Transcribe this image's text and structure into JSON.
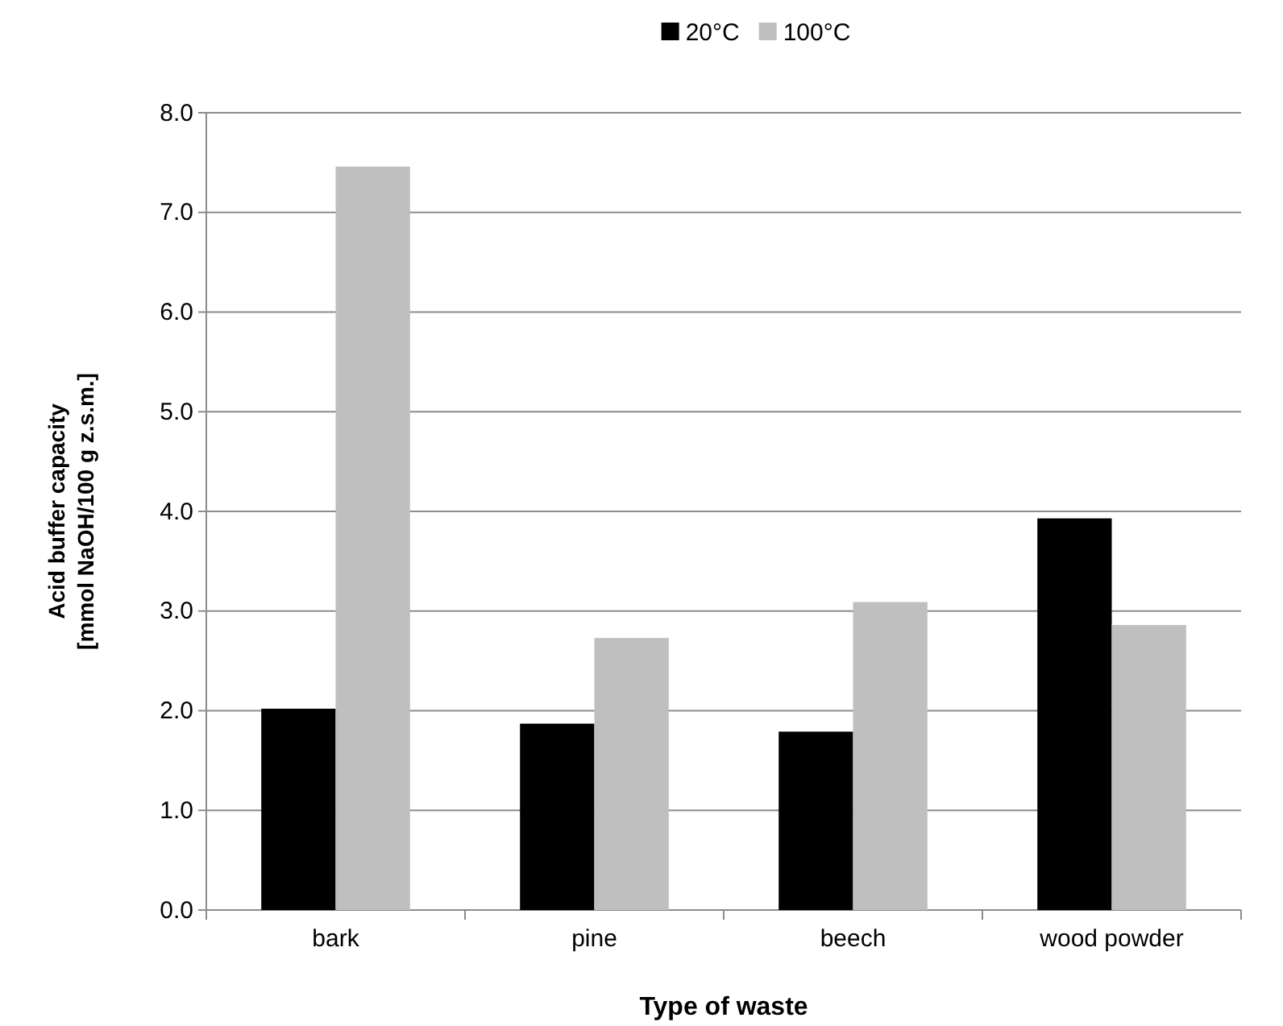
{
  "chart_data": {
    "type": "bar",
    "xlabel": "Type of waste",
    "ylabel": "Acid buffer capacity\n[mmol NaOH/100 g z.s.m.]",
    "categories": [
      "bark",
      "pine",
      "beech",
      "wood powder"
    ],
    "series": [
      {
        "name": "20°C",
        "color": "#000000",
        "values": [
          2.02,
          1.87,
          1.79,
          3.93
        ]
      },
      {
        "name": "100°C",
        "color": "#bfbfbf",
        "values": [
          7.46,
          2.73,
          3.09,
          2.86
        ]
      }
    ],
    "ylim": [
      0,
      8
    ],
    "yticks": [
      {
        "value": 0,
        "label": "0.0"
      },
      {
        "value": 1,
        "label": "1.0"
      },
      {
        "value": 2,
        "label": "2.0"
      },
      {
        "value": 3,
        "label": "3.0"
      },
      {
        "value": 4,
        "label": "4.0"
      },
      {
        "value": 5,
        "label": "5.0"
      },
      {
        "value": 6,
        "label": "6.0"
      },
      {
        "value": 7,
        "label": "7.0"
      },
      {
        "value": 8,
        "label": "8.0"
      }
    ],
    "grid": "y",
    "legend": "top"
  }
}
